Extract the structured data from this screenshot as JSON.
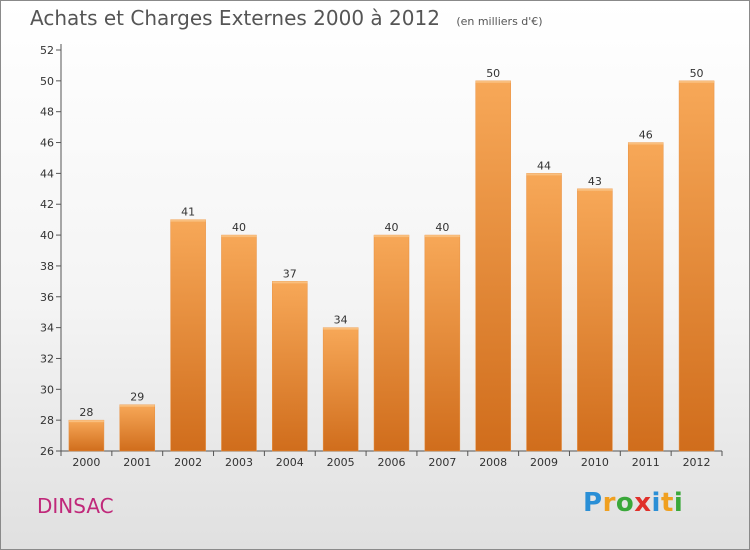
{
  "chart_data": {
    "type": "bar",
    "title": "Achats et Charges Externes 2000 à 2012",
    "subtitle": "(en milliers d'€)",
    "categories": [
      "2000",
      "2001",
      "2002",
      "2003",
      "2004",
      "2005",
      "2006",
      "2007",
      "2008",
      "2009",
      "2010",
      "2011",
      "2012"
    ],
    "values": [
      28,
      29,
      41,
      40,
      37,
      34,
      40,
      40,
      50,
      44,
      43,
      46,
      50
    ],
    "data_labels": [
      "28",
      "29",
      "41",
      "40",
      "37",
      "34",
      "40",
      "40",
      "50",
      "44",
      "43",
      "46",
      "50"
    ],
    "ylim": [
      26,
      52
    ],
    "yticks": [
      26,
      28,
      30,
      32,
      34,
      36,
      38,
      40,
      42,
      44,
      46,
      48,
      50,
      52
    ],
    "grid": false,
    "bar_color_top": "#f7a858",
    "bar_color_bottom": "#d06d1c"
  },
  "footer": {
    "commune": "DINSAC",
    "logo_letters": [
      "P",
      "r",
      "o",
      "x",
      "i",
      "t",
      "i"
    ],
    "logo_colors": [
      "#2a8fd6",
      "#f0a020",
      "#3aa83a",
      "#e0302a",
      "#2a8fd6",
      "#f0a020",
      "#3aa83a"
    ]
  }
}
